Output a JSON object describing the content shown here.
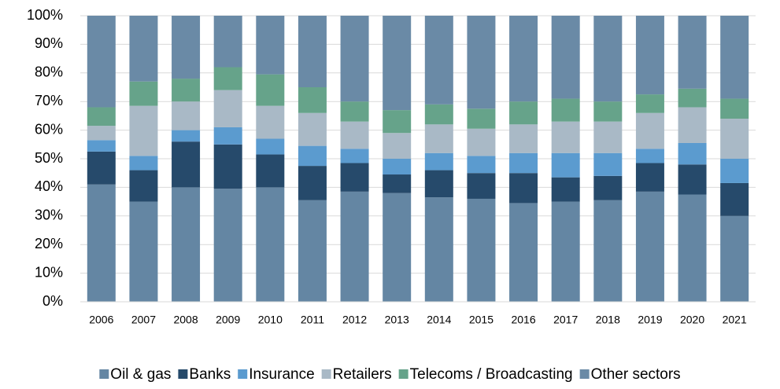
{
  "chart_data": {
    "type": "stacked_bar",
    "categories": [
      "2006",
      "2007",
      "2008",
      "2009",
      "2010",
      "2011",
      "2012",
      "2013",
      "2014",
      "2015",
      "2016",
      "2017",
      "2018",
      "2019",
      "2020",
      "2021"
    ],
    "series": [
      {
        "name": "Oil & gas",
        "color": "#6486a3",
        "values": [
          41,
          35,
          40,
          39.5,
          40,
          35.5,
          38.5,
          38,
          36.5,
          36,
          34.5,
          35,
          35.5,
          38.5,
          37.5,
          30
        ]
      },
      {
        "name": "Banks",
        "color": "#264a6b",
        "values": [
          11.5,
          11,
          16,
          15.5,
          11.5,
          12,
          10,
          6.5,
          9.5,
          9,
          10.5,
          8.5,
          8.5,
          10,
          10.5,
          11.5
        ]
      },
      {
        "name": "Insurance",
        "color": "#5b9bcf",
        "values": [
          4,
          5,
          4,
          6,
          5.5,
          7,
          5,
          5.5,
          6,
          6,
          7,
          8.5,
          8,
          5,
          7.5,
          8.5
        ]
      },
      {
        "name": "Retailers",
        "color": "#a9b9c6",
        "values": [
          5,
          17.5,
          10,
          13,
          11.5,
          11.5,
          9.5,
          9,
          10,
          9.5,
          10,
          11,
          11,
          12.5,
          12.5,
          14
        ]
      },
      {
        "name": "Telecoms / Broadcasting",
        "color": "#66a38a",
        "values": [
          6.5,
          8.5,
          8,
          8,
          11,
          9,
          7,
          8,
          7,
          7,
          8,
          8,
          7,
          6.5,
          6.5,
          7
        ]
      },
      {
        "name": "Other sectors",
        "color": "#6a8aa6",
        "values": [
          32,
          23,
          22,
          18,
          20.5,
          25,
          30,
          33,
          31,
          32.5,
          30,
          29,
          30,
          27.5,
          25.5,
          29
        ]
      }
    ],
    "ylim": [
      0,
      100
    ],
    "yticks": [
      {
        "value": 0,
        "label": "0%"
      },
      {
        "value": 10,
        "label": "10%"
      },
      {
        "value": 20,
        "label": "20%"
      },
      {
        "value": 30,
        "label": "30%"
      },
      {
        "value": 40,
        "label": "40%"
      },
      {
        "value": 50,
        "label": "50%"
      },
      {
        "value": 60,
        "label": "60%"
      },
      {
        "value": 70,
        "label": "70%"
      },
      {
        "value": 80,
        "label": "80%"
      },
      {
        "value": 90,
        "label": "90%"
      },
      {
        "value": 100,
        "label": "100%"
      }
    ],
    "grid": true,
    "legend": "bottom"
  }
}
